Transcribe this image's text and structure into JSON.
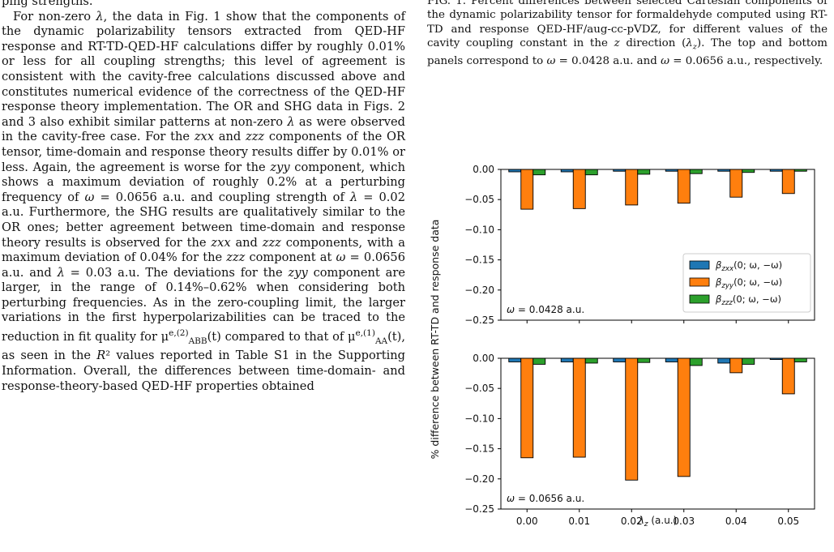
{
  "body": {
    "top_line": "ping strengths.",
    "paragraph": "For non-zero λ, the data in Fig. 1 show that the components of the dynamic polarizability tensors extracted from QED-HF response and RT-TD-QED-HF calculations differ by roughly 0.01% or less for all coupling strengths; this level of agreement is consistent with the cavity-free calculations discussed above and constitutes numerical evidence of the correctness of the QED-HF response theory implementation. The OR and SHG data in Figs. 2 and 3 also exhibit similar patterns at non-zero λ as were observed in the cavity-free case. For the zxx and zzz components of the OR tensor, time-domain and response theory results differ by 0.01% or less. Again, the agreement is worse for the zyy component, which shows a maximum deviation of roughly 0.2% at a perturbing frequency of ω = 0.0656 a.u. and coupling strength of λ = 0.02 a.u. Furthermore, the SHG results are qualitatively similar to the OR ones; better agreement between time-domain and response theory results is observed for the zxx and zzz components, with a maximum deviation of 0.04% for the zzz component at ω = 0.0656 a.u. and λ = 0.03 a.u. The deviations for the zyy component are larger, in the range of 0.14%–0.62% when considering both perturbing frequencies. As in the zero-coupling limit, the larger variations in the first hyperpolarizabilities can be traced to the reduction in fit quality for μ^{e,(2)}_{ABB}(t) compared to that of μ^{e,(1)}_{AA}(t), as seen in the R² values reported in Table S1 in the Supporting Information. Overall, the differences between time-domain- and response-theory-based QED-HF properties obtained"
  },
  "caption": {
    "text": "FIG. 1. Percent differences between selected Cartesian components of the dynamic polarizability tensor for formaldehyde computed using RT-TD and response QED-HF/aug-cc-pVDZ, for different values of the cavity coupling constant in the z direction (λ_z). The top and bottom panels correspond to ω = 0.0428 a.u. and ω = 0.0656 a.u., respectively."
  },
  "chart_data": {
    "type": "bar",
    "ylabel": "% difference between RT-TD and response data",
    "xlabel": "λ_z (a.u.)",
    "categories": [
      "0.00",
      "0.01",
      "0.02",
      "0.03",
      "0.04",
      "0.05"
    ],
    "ylim": [
      -0.25,
      0.0
    ],
    "yticks": [
      "0.00",
      "−0.05",
      "−0.10",
      "−0.15",
      "−0.20",
      "−0.25"
    ],
    "legend": [
      "β_zxx(0; ω, −ω)",
      "β_zyy(0; ω, −ω)",
      "β_zzz(0; ω, −ω)"
    ],
    "legend_position": "lower right of top panel",
    "colors": [
      "#1f77b4",
      "#ff7f0e",
      "#2ca02c"
    ],
    "panels": [
      {
        "label": "ω = 0.0428 a.u.",
        "series": [
          {
            "values": [
              -0.004,
              -0.004,
              -0.003,
              -0.003,
              -0.003,
              -0.003
            ]
          },
          {
            "values": [
              -0.066,
              -0.065,
              -0.059,
              -0.056,
              -0.046,
              -0.04
            ]
          },
          {
            "values": [
              -0.009,
              -0.009,
              -0.008,
              -0.007,
              -0.005,
              -0.003
            ]
          }
        ]
      },
      {
        "label": "ω = 0.0656 a.u.",
        "series": [
          {
            "values": [
              -0.006,
              -0.006,
              -0.006,
              -0.006,
              -0.008,
              -0.002
            ]
          },
          {
            "values": [
              -0.165,
              -0.164,
              -0.202,
              -0.196,
              -0.024,
              -0.059
            ]
          },
          {
            "values": [
              -0.01,
              -0.008,
              -0.007,
              -0.012,
              -0.01,
              -0.006
            ]
          }
        ]
      }
    ]
  }
}
